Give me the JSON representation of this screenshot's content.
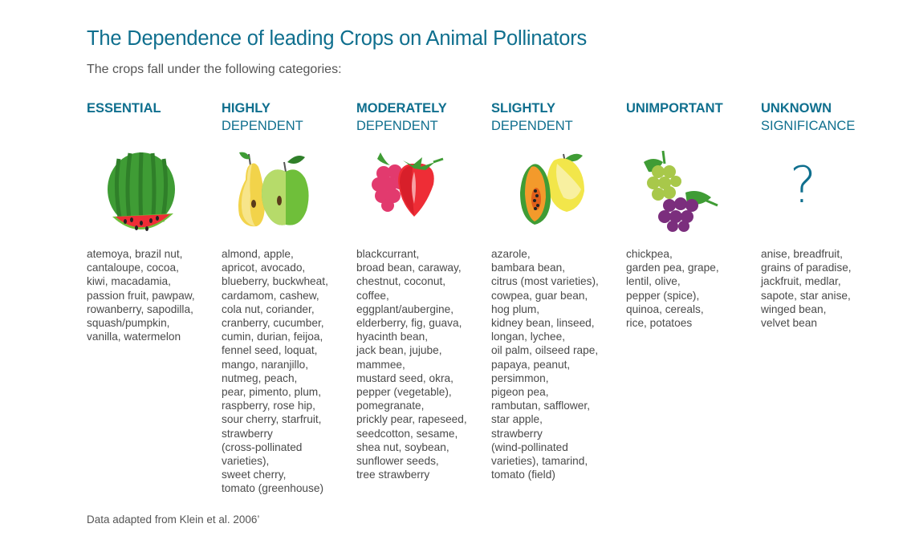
{
  "title": "The Dependence of leading Crops on Animal Pollinators",
  "subtitle": "The crops fall under the following categories:",
  "categories": [
    {
      "line1": "ESSENTIAL",
      "line2": "",
      "icon": "watermelon-icon",
      "crops": "atemoya, brazil nut,\ncantaloupe, cocoa,\nkiwi, macadamia,\npassion fruit, pawpaw,\nrowanberry, sapodilla,\nsquash/pumpkin,\nvanilla, watermelon"
    },
    {
      "line1": "HIGHLY",
      "line2": "DEPENDENT",
      "icon": "pear-apple-icon",
      "crops": "almond, apple,\napricot, avocado,\nblueberry, buckwheat,\ncardamom, cashew,\ncola nut, coriander,\ncranberry, cucumber,\ncumin, durian, feijoa,\nfennel seed, loquat,\nmango, naranjillo,\nnutmeg, peach,\npear, pimento, plum,\nraspberry, rose hip,\nsour cherry, starfruit,\nstrawberry\n(cross-pollinated\nvarieties),\nsweet cherry,\ntomato (greenhouse)"
    },
    {
      "line1": "MODERATELY",
      "line2": "DEPENDENT",
      "icon": "raspberry-strawberry-icon",
      "crops": "blackcurrant,\nbroad bean, caraway,\nchestnut, coconut,\ncoffee,\neggplant/aubergine,\nelderberry, fig, guava,\nhyacinth bean,\njack bean, jujube,\nmammee,\nmustard seed, okra,\npepper (vegetable),\npomegranate,\nprickly pear, rapeseed,\nseedcotton, sesame,\nshea nut, soybean,\nsunflower seeds,\ntree strawberry"
    },
    {
      "line1": "SLIGHTLY",
      "line2": "DEPENDENT",
      "icon": "papaya-lemon-icon",
      "crops": "azarole,\nbambara bean,\ncitrus (most varieties),\ncowpea, guar bean,\nhog plum,\nkidney bean, linseed,\nlongan, lychee,\noil palm, oilseed rape,\npapaya, peanut,\npersimmon,\npigeon pea,\nrambutan, safflower,\nstar apple,\nstrawberry\n(wind-pollinated\nvarieties), tamarind,\ntomato (field)"
    },
    {
      "line1": "UNIMPORTANT",
      "line2": "",
      "icon": "grapes-icon",
      "crops": "chickpea,\ngarden pea, grape,\nlentil, olive,\npepper (spice),\nquinoa, cereals,\nrice, potatoes"
    },
    {
      "line1": "UNKNOWN",
      "line2": "SIGNIFICANCE",
      "icon": "question-mark-icon",
      "icon_text": "?",
      "crops": "anise, breadfruit,\ngrains of paradise,\njackfruit, medlar,\nsapote, star anise,\nwinged bean,\nvelvet bean"
    }
  ],
  "footer": "Data adapted from Klein et al. 2006’"
}
